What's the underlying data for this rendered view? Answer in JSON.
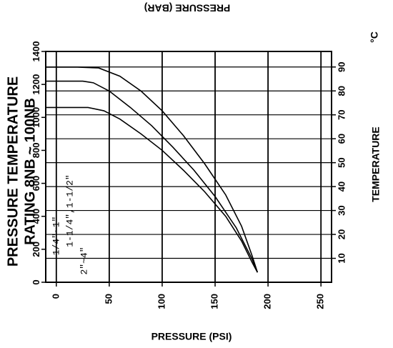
{
  "chart_data": {
    "type": "line",
    "title": "PRESSURE TEMPERATURE RATING 8NB ~ 100NB",
    "title_lines": [
      "PRESSURE TEMPERATURE",
      "RATING 8NB ~ 100NB"
    ],
    "temperature_axis": {
      "label": "TEMPERATURE",
      "unit": "°C",
      "ticks": [
        0,
        50,
        100,
        150,
        200,
        250
      ],
      "range": [
        -10,
        260
      ]
    },
    "pressure_psi_axis": {
      "label": "PRESSURE (PSI)",
      "ticks": [
        0,
        200,
        400,
        600,
        800,
        1000,
        1200,
        1400
      ],
      "range": [
        0,
        1400
      ]
    },
    "pressure_bar_axis": {
      "label": "PRESSURE (BAR)",
      "ticks": [
        10,
        20,
        30,
        40,
        50,
        60,
        70,
        80,
        90
      ],
      "range": [
        0,
        96.5
      ]
    },
    "series": [
      {
        "name": "1/4\"~1\"",
        "points": [
          [
            -10,
            1305
          ],
          [
            20,
            1305
          ],
          [
            40,
            1300
          ],
          [
            60,
            1250
          ],
          [
            80,
            1160
          ],
          [
            100,
            1040
          ],
          [
            120,
            890
          ],
          [
            140,
            720
          ],
          [
            160,
            530
          ],
          [
            175,
            340
          ],
          [
            185,
            160
          ],
          [
            190,
            60
          ]
        ]
      },
      {
        "name": "1-1/4\",1-1/2\"",
        "points": [
          [
            -10,
            1220
          ],
          [
            25,
            1220
          ],
          [
            35,
            1210
          ],
          [
            50,
            1160
          ],
          [
            70,
            1060
          ],
          [
            90,
            950
          ],
          [
            110,
            820
          ],
          [
            130,
            680
          ],
          [
            150,
            520
          ],
          [
            170,
            330
          ],
          [
            185,
            140
          ],
          [
            190,
            60
          ]
        ]
      },
      {
        "name": "2\"~4\"",
        "points": [
          [
            -10,
            1060
          ],
          [
            30,
            1060
          ],
          [
            45,
            1040
          ],
          [
            60,
            990
          ],
          [
            80,
            900
          ],
          [
            100,
            800
          ],
          [
            120,
            680
          ],
          [
            140,
            550
          ],
          [
            160,
            400
          ],
          [
            175,
            250
          ],
          [
            185,
            120
          ],
          [
            190,
            60
          ]
        ]
      }
    ],
    "grid": true
  }
}
